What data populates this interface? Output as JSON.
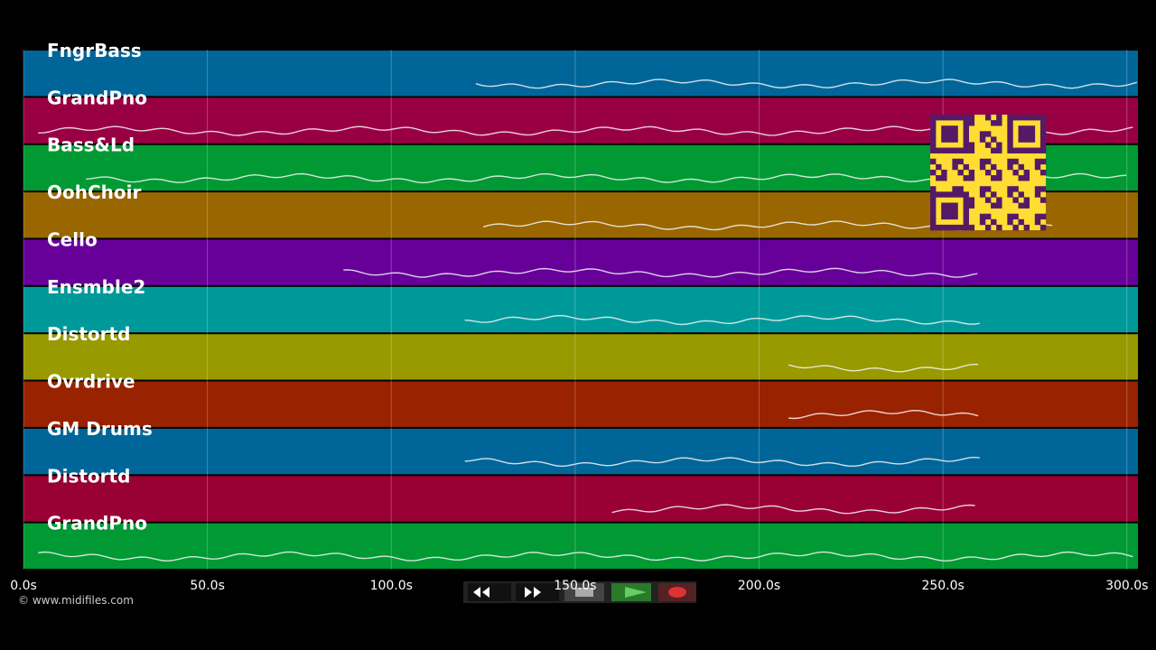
{
  "tracks": [
    {
      "name": "FngrBass",
      "color": "#006699",
      "active": [
        123,
        303
      ]
    },
    {
      "name": "GrandPno",
      "color": "#990044",
      "active": [
        4,
        303
      ]
    },
    {
      "name": "Bass&Ld",
      "color": "#009933",
      "active": [
        17,
        300
      ]
    },
    {
      "name": "OohChoir",
      "color": "#996600",
      "active": [
        125,
        280
      ]
    },
    {
      "name": "Cello",
      "color": "#660099",
      "active": [
        87,
        260
      ]
    },
    {
      "name": "Ensmble2",
      "color": "#009999",
      "active": [
        120,
        260
      ]
    },
    {
      "name": "Distortd",
      "color": "#999900",
      "active": [
        208,
        260
      ]
    },
    {
      "name": "Ovrdrive",
      "color": "#992200",
      "active": [
        208,
        260
      ]
    },
    {
      "name": "GM Drums",
      "color": "#006699",
      "active": [
        120,
        260
      ]
    },
    {
      "name": "Distortd",
      "color": "#990033",
      "active": [
        160,
        260
      ]
    },
    {
      "name": "GrandPno",
      "color": "#009933",
      "active": [
        4,
        303
      ]
    }
  ],
  "timeline": {
    "xlim": [
      0,
      303
    ],
    "xticks": [
      {
        "value": 0,
        "label": "0.0s"
      },
      {
        "value": 50,
        "label": "50.0s"
      },
      {
        "value": 100,
        "label": "100.0s"
      },
      {
        "value": 150,
        "label": "150.0s"
      },
      {
        "value": 200,
        "label": "200.0s"
      },
      {
        "value": 250,
        "label": "250.0s"
      },
      {
        "value": 300,
        "label": "300.0s"
      }
    ]
  },
  "footer": {
    "copyright": "© www.midifiles.com"
  }
}
